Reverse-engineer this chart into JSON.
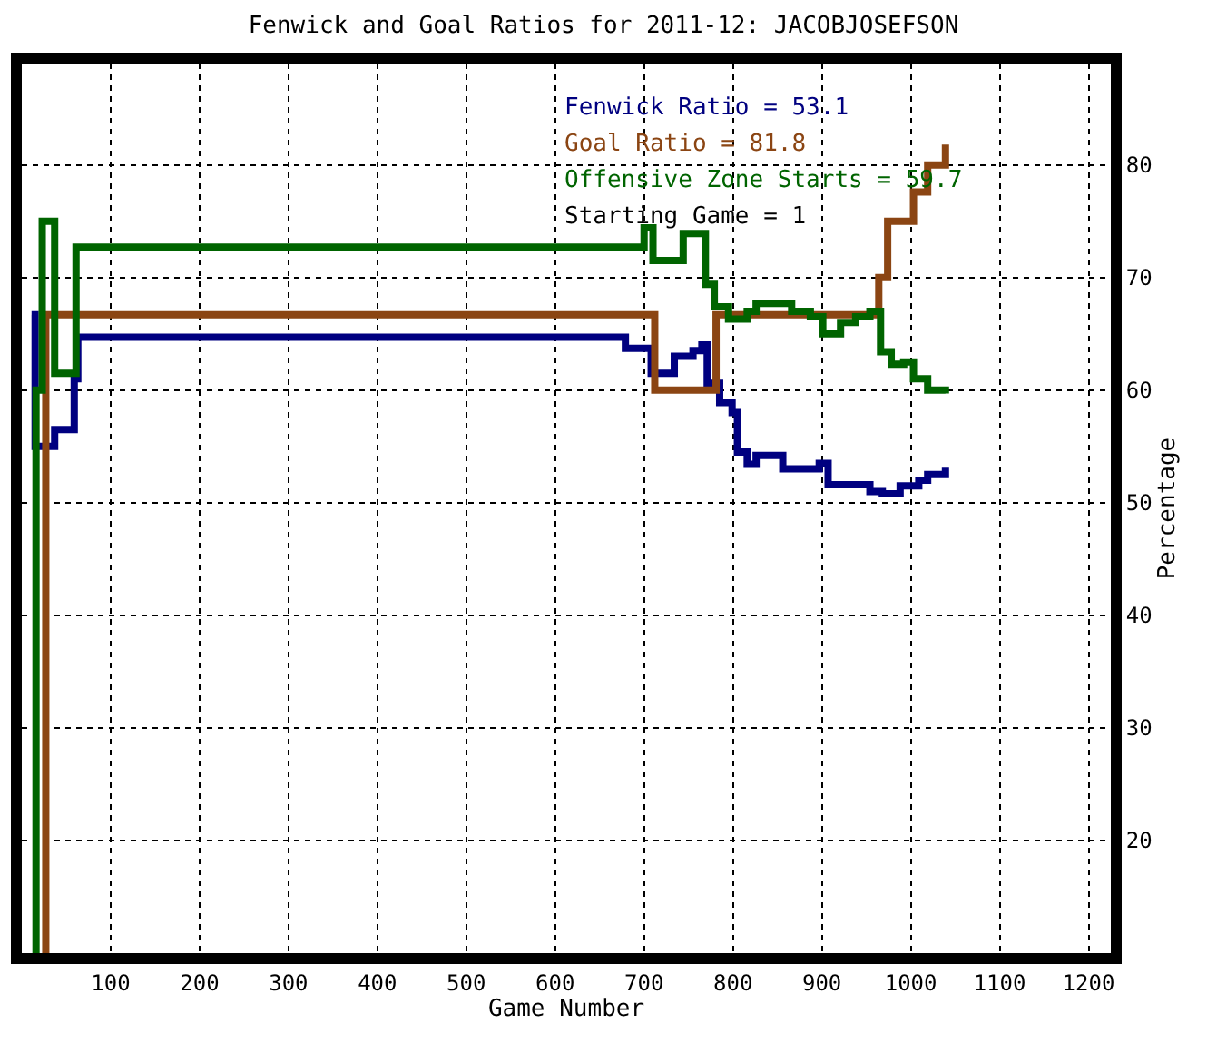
{
  "chart_data": {
    "type": "step",
    "title": "Fenwick and Goal Ratios for 2011-12: JACOBJOSEFSON",
    "xlabel": "Game Number",
    "ylabel": "Percentage",
    "xlim": [
      0,
      1225
    ],
    "xticks": [
      100,
      200,
      300,
      400,
      500,
      600,
      700,
      800,
      900,
      1000,
      1100,
      1200
    ],
    "ylim": [
      10,
      89
    ],
    "yticks": [
      20,
      30,
      40,
      50,
      60,
      70,
      80
    ],
    "grid": true,
    "legend": false,
    "line_style": "solid",
    "annotations": [
      "Starting Game = 1"
    ],
    "series": [
      {
        "name": "Fenwick Ratio = 53.1",
        "color": "#000080",
        "x": [
          11,
          15,
          37,
          59,
          63,
          679,
          708,
          734,
          755,
          765,
          771,
          785,
          799,
          805,
          816,
          826,
          856,
          897,
          907,
          954,
          968,
          988,
          1009,
          1019,
          1039
        ],
        "values": [
          66.7,
          55,
          56.5,
          61,
          64.7,
          63.7,
          61.5,
          63,
          63.5,
          64,
          60.6,
          58.9,
          58,
          54.5,
          53.4,
          54.2,
          53,
          53.5,
          51.6,
          51,
          50.8,
          51.5,
          52,
          52.5,
          53.1
        ]
      },
      {
        "name": "Goal Ratio = 81.8",
        "color": "#8b4513",
        "x": [
          25,
          27,
          712,
          781,
          964,
          974,
          1003,
          1019,
          1039
        ],
        "values": [
          10,
          66.7,
          60,
          66.7,
          70,
          75,
          77.6,
          80,
          81.8
        ]
      },
      {
        "name": "Offensive Zone Starts = 59.7",
        "color": "#006400",
        "x": [
          15,
          16,
          23,
          37,
          61,
          700,
          710,
          744,
          769,
          779,
          795,
          816,
          826,
          866,
          887,
          901,
          921,
          938,
          954,
          966,
          978,
          992,
          1003,
          1019,
          1039
        ],
        "values": [
          10,
          60,
          75,
          61.5,
          72.7,
          74.4,
          71.5,
          73.9,
          69.4,
          67.4,
          66.3,
          67,
          67.7,
          67,
          66.5,
          65,
          66,
          66.5,
          67,
          63.4,
          62.3,
          62.5,
          61,
          60,
          59.7
        ]
      }
    ]
  }
}
